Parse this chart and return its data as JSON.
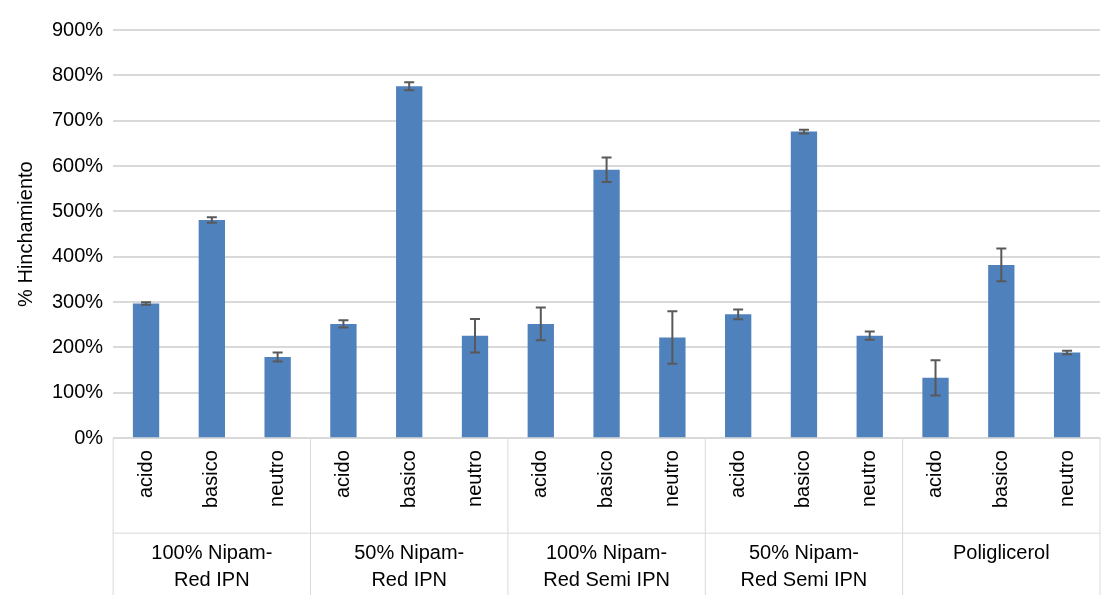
{
  "chart_data": {
    "type": "bar",
    "ylabel": "% Hinchamiento",
    "categories": [
      "acido",
      "basico",
      "neutro",
      "acido",
      "basico",
      "neutro",
      "acido",
      "basico",
      "neutro",
      "acido",
      "basico",
      "neutro",
      "acido",
      "basico",
      "neutro"
    ],
    "values": [
      297,
      481,
      179,
      252,
      776,
      226,
      252,
      592,
      222,
      273,
      676,
      226,
      133,
      382,
      189
    ],
    "errors": [
      3,
      6,
      10,
      8,
      9,
      37,
      36,
      27,
      58,
      11,
      4,
      9,
      39,
      36,
      4
    ],
    "color": "#4f81bd",
    "ylim": [
      0,
      900
    ],
    "yticks": [
      {
        "value": 0,
        "label": "0%"
      },
      {
        "value": 100,
        "label": "100%"
      },
      {
        "value": 200,
        "label": "200%"
      },
      {
        "value": 300,
        "label": "300%"
      },
      {
        "value": 400,
        "label": "400%"
      },
      {
        "value": 500,
        "label": "500%"
      },
      {
        "value": 600,
        "label": "600%"
      },
      {
        "value": 700,
        "label": "700%"
      },
      {
        "value": 800,
        "label": "800%"
      },
      {
        "value": 900,
        "label": "900%"
      }
    ],
    "grid": true,
    "annotations": [
      "100% Nipam-Red IPN",
      "50% Nipam-Red IPN",
      "100% Nipam-Red Semi IPN",
      "50% Nipam-Red Semi IPN",
      "Poliglicerol"
    ]
  }
}
